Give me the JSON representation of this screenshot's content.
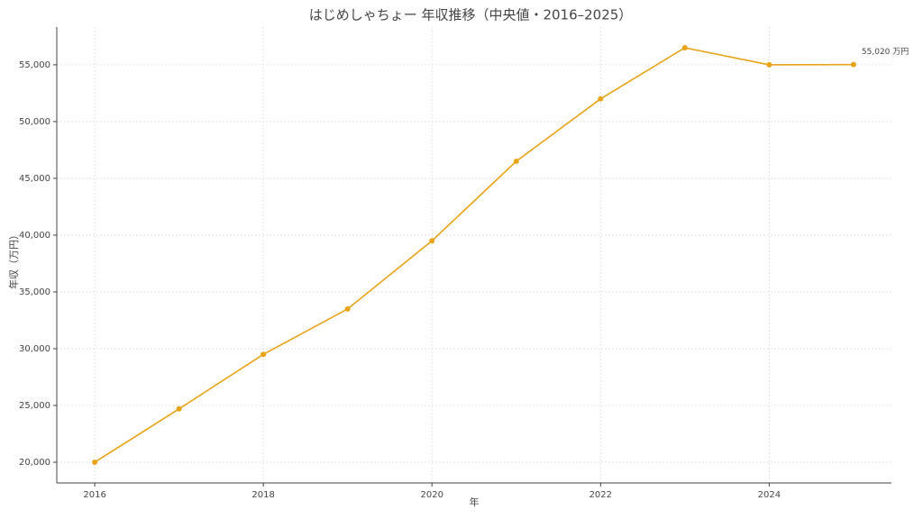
{
  "chart_data": {
    "type": "line",
    "title": "はじめしゃちょー 年収推移（中央値・2016–2025）",
    "x_label": "年",
    "y_label": "年収（万円）",
    "x": [
      2016,
      2017,
      2018,
      2019,
      2020,
      2021,
      2022,
      2023,
      2024,
      2025
    ],
    "series": [
      {
        "name": "年収",
        "color": "#e8a317",
        "values": [
          20000,
          24700,
          29500,
          33500,
          39500,
          46500,
          52000,
          56500,
          55000,
          55020
        ],
        "value_labels": [
          null,
          null,
          null,
          null,
          null,
          null,
          null,
          null,
          null,
          "55,020 万円"
        ]
      }
    ],
    "xlim": [
      2015.55,
      2025.45
    ],
    "xticks": [
      2016,
      2018,
      2020,
      2022,
      2024
    ],
    "ylim": [
      18175,
      58325
    ],
    "yticks": [
      {
        "value": 20000,
        "label": "20,000"
      },
      {
        "value": 25000,
        "label": "25,000"
      },
      {
        "value": 30000,
        "label": "30,000"
      },
      {
        "value": 35000,
        "label": "35,000"
      },
      {
        "value": 40000,
        "label": "40,000"
      },
      {
        "value": 45000,
        "label": "45,000"
      },
      {
        "value": 50000,
        "label": "50,000"
      },
      {
        "value": 55000,
        "label": "55,000"
      }
    ],
    "grid": true
  }
}
